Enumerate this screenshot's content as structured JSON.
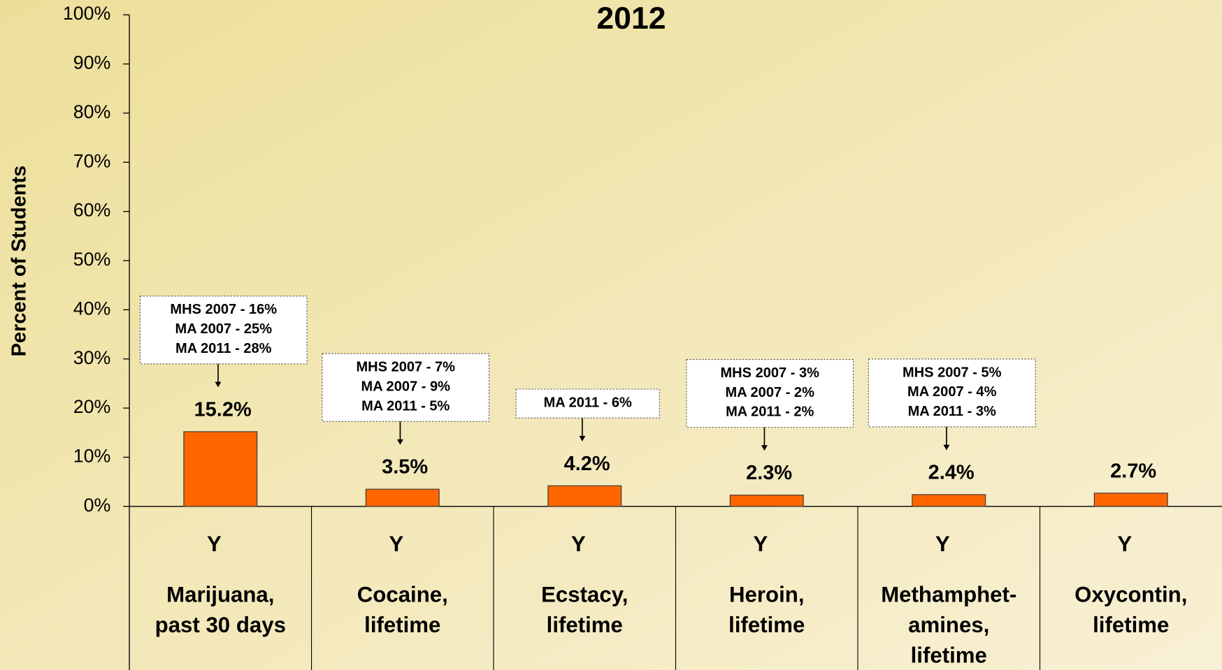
{
  "chart_data": {
    "type": "bar",
    "title": "2012",
    "y_label": "Percent of Students",
    "row_labels": [
      "Y",
      "Y",
      "Y",
      "Y",
      "Y",
      "Y"
    ],
    "categories": [
      [
        "Marijuana,",
        "past 30 days"
      ],
      [
        "Cocaine,",
        "lifetime"
      ],
      [
        "Ecstacy,",
        "lifetime"
      ],
      [
        "Heroin,",
        "lifetime"
      ],
      [
        "Methamphet-",
        "amines,",
        "lifetime"
      ],
      [
        "Oxycontin,",
        "lifetime"
      ]
    ],
    "values": [
      15.2,
      3.5,
      4.2,
      2.3,
      2.4,
      2.7
    ],
    "value_labels": [
      "15.2%",
      "3.5%",
      "4.2%",
      "2.3%",
      "2.4%",
      "2.7%"
    ],
    "annotations": [
      [
        "MHS 2007 - 16%",
        "MA 2007 - 25%",
        "MA 2011 - 28%"
      ],
      [
        "MHS 2007 - 7%",
        "MA 2007 - 9%",
        "MA 2011 - 5%"
      ],
      [
        "MA 2011 - 6%"
      ],
      [
        "MHS 2007 - 3%",
        "MA 2007 - 2%",
        "MA 2011 - 2%"
      ],
      [
        "MHS 2007 - 5%",
        "MA 2007 - 4%",
        "MA 2011 - 3%"
      ],
      null
    ],
    "color": "#ff6600",
    "ylim": [
      0,
      100
    ],
    "yticks": [
      {
        "value": 0,
        "label": "0%"
      },
      {
        "value": 10,
        "label": "10%"
      },
      {
        "value": 20,
        "label": "20%"
      },
      {
        "value": 30,
        "label": "30%"
      },
      {
        "value": 40,
        "label": "40%"
      },
      {
        "value": 50,
        "label": "50%"
      },
      {
        "value": 60,
        "label": "60%"
      },
      {
        "value": 70,
        "label": "70%"
      },
      {
        "value": 80,
        "label": "80%"
      },
      {
        "value": 90,
        "label": "90%"
      },
      {
        "value": 100,
        "label": "100%"
      }
    ]
  }
}
